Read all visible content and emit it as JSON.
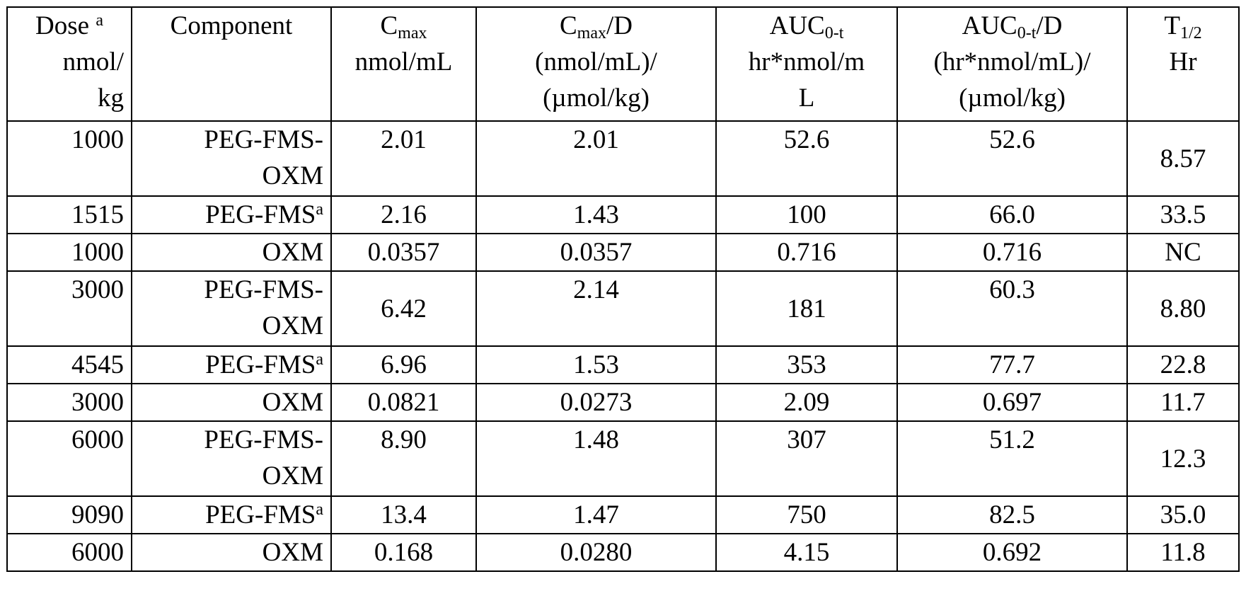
{
  "header": {
    "columns": [
      {
        "base": "Dose",
        "sup": "a"
      },
      {
        "base": "Component"
      },
      {
        "base": "C",
        "sub": "max"
      },
      {
        "base": "C",
        "sub": "max",
        "after": "/D"
      },
      {
        "base": "AUC",
        "sub": "0-t"
      },
      {
        "base": "AUC",
        "sub": "0-t",
        "after": "/D"
      },
      {
        "base": "T",
        "sub": "1/2"
      }
    ],
    "units": [
      [
        "nmol/",
        "kg"
      ],
      [],
      [
        "nmol/mL"
      ],
      [
        "(nmol/mL)/",
        "(µmol/kg)"
      ],
      [
        "hr*nmol/m",
        "L"
      ],
      [
        "(hr*nmol/mL)/",
        "(µmol/kg)"
      ],
      [
        "Hr"
      ]
    ]
  },
  "rows": [
    {
      "dose": "1000",
      "component": {
        "lines": [
          "PEG-FMS-",
          "OXM"
        ]
      },
      "values": [
        "2.01",
        "2.01",
        "52.6",
        "52.6",
        "8.57"
      ]
    },
    {
      "dose": "1515",
      "component": {
        "lines": [
          "PEG-FMS"
        ],
        "sup": "a"
      },
      "values": [
        "2.16",
        "1.43",
        "100",
        "66.0",
        "33.5"
      ]
    },
    {
      "dose": "1000",
      "component": {
        "lines": [
          "OXM"
        ]
      },
      "values": [
        "0.0357",
        "0.0357",
        "0.716",
        "0.716",
        "NC"
      ]
    },
    {
      "dose": "3000",
      "component": {
        "lines": [
          "PEG-FMS-",
          "OXM"
        ]
      },
      "values": [
        "6.42",
        "2.14",
        "181",
        "60.3",
        "8.80"
      ]
    },
    {
      "dose": "4545",
      "component": {
        "lines": [
          "PEG-FMS"
        ],
        "sup": "a"
      },
      "values": [
        "6.96",
        "1.53",
        "353",
        "77.7",
        "22.8"
      ]
    },
    {
      "dose": "3000",
      "component": {
        "lines": [
          "OXM"
        ]
      },
      "values": [
        "0.0821",
        "0.0273",
        "2.09",
        "0.697",
        "11.7"
      ]
    },
    {
      "dose": "6000",
      "component": {
        "lines": [
          "PEG-FMS-",
          "OXM"
        ]
      },
      "values": [
        "8.90",
        "1.48",
        "307",
        "51.2",
        "12.3"
      ]
    },
    {
      "dose": "9090",
      "component": {
        "lines": [
          "PEG-FMS"
        ],
        "sup": "a"
      },
      "values": [
        "13.4",
        "1.47",
        "750",
        "82.5",
        "35.0"
      ]
    },
    {
      "dose": "6000",
      "component": {
        "lines": [
          "OXM"
        ]
      },
      "values": [
        "0.168",
        "0.0280",
        "4.15",
        "0.692",
        "11.8"
      ]
    }
  ]
}
